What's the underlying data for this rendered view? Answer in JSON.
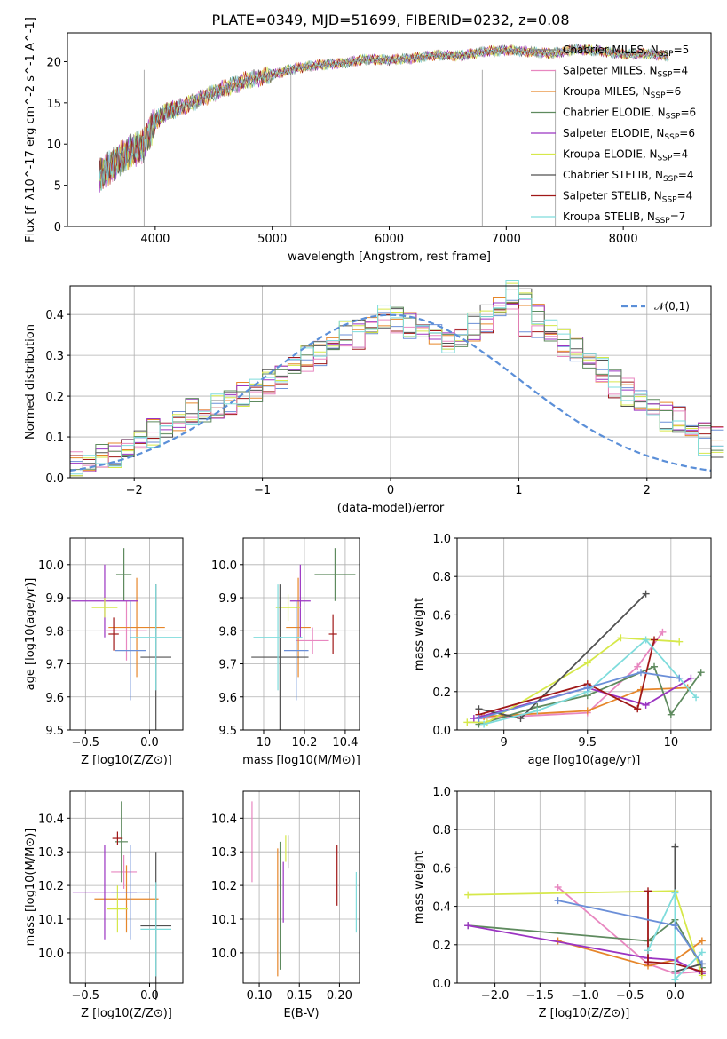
{
  "figure_title": "PLATE=0349, MJD=51699, FIBERID=0232, z=0.08",
  "colors": [
    "#808080",
    "#e887c0",
    "#e6862a",
    "#5e8a5e",
    "#9b34c2",
    "#d6e84a",
    "#505050",
    "#a01818",
    "#7fdcdc"
  ],
  "cmp_colors": [
    "#e887c0",
    "#e6862a",
    "#5e8a5e",
    "#9b34c2",
    "#d6e84a",
    "#505050",
    "#a01818",
    "#7fdcdc",
    "#6b8fd8"
  ],
  "legend": [
    {
      "name": "Chabrier MILES, N",
      "sub": "SSP",
      "rest": "=5"
    },
    {
      "name": "Salpeter MILES, N",
      "sub": "SSP",
      "rest": "=4"
    },
    {
      "name": "Kroupa MILES, N",
      "sub": "SSP",
      "rest": "=6"
    },
    {
      "name": "Chabrier ELODIE, N",
      "sub": "SSP",
      "rest": "=6"
    },
    {
      "name": "Salpeter ELODIE, N",
      "sub": "SSP",
      "rest": "=6"
    },
    {
      "name": "Kroupa ELODIE, N",
      "sub": "SSP",
      "rest": "=4"
    },
    {
      "name": "Chabrier STELIB, N",
      "sub": "SSP",
      "rest": "=4"
    },
    {
      "name": "Salpeter STELIB, N",
      "sub": "SSP",
      "rest": "=4"
    },
    {
      "name": "Kroupa STELIB, N",
      "sub": "SSP",
      "rest": "=7"
    }
  ],
  "chart_data": [
    {
      "id": "spectrum",
      "type": "line",
      "xlabel": "wavelength [Angstrom, rest frame]",
      "ylabel": "Flux [f_λ10^-17 erg cm^-2 s^-1 A^-1]",
      "xlim": [
        3250,
        8750
      ],
      "ylim": [
        0,
        23.5
      ],
      "xticks": [
        4000,
        5000,
        6000,
        7000,
        8000
      ],
      "yticks": [
        0,
        5,
        10,
        15,
        20
      ],
      "x": [
        3520,
        3600,
        3700,
        3800,
        3900,
        4000,
        4100,
        4200,
        4400,
        4600,
        4800,
        5000,
        5200,
        5400,
        5600,
        5800,
        6000,
        6200,
        6400,
        6600,
        6800,
        7000,
        7200,
        7400,
        7600,
        7800,
        8000,
        8200,
        8400
      ],
      "y": [
        6.2,
        7.0,
        8.2,
        9.2,
        9.8,
        12.8,
        14.0,
        14.3,
        15.6,
        16.8,
        17.8,
        18.4,
        19.2,
        19.6,
        19.8,
        20.3,
        20.2,
        20.4,
        20.8,
        20.7,
        21.2,
        21.4,
        21.2,
        21.0,
        21.5,
        21.3,
        20.9,
        21.0,
        20.6
      ]
    },
    {
      "id": "residuals",
      "type": "histogram",
      "xlabel": "(data-model)/error",
      "ylabel": "Normed distribution",
      "xlim": [
        -2.5,
        2.5
      ],
      "ylim": [
        0,
        0.47
      ],
      "xticks": [
        -2,
        -1,
        0,
        1,
        2
      ],
      "yticks": [
        0.0,
        0.1,
        0.2,
        0.3,
        0.4
      ],
      "legend": "𝒩(0,1)",
      "bin_edges_start": -2.5,
      "bin_width": 0.1,
      "series": [
        {
          "values": [
            0.04,
            0.03,
            0.05,
            0.05,
            0.07,
            0.1,
            0.11,
            0.11,
            0.15,
            0.16,
            0.14,
            0.16,
            0.18,
            0.19,
            0.2,
            0.23,
            0.24,
            0.27,
            0.28,
            0.3,
            0.31,
            0.33,
            0.34,
            0.36,
            0.38,
            0.38,
            0.36,
            0.35,
            0.37,
            0.34,
            0.34,
            0.36,
            0.38,
            0.4,
            0.41,
            0.37,
            0.36,
            0.33,
            0.32,
            0.31,
            0.28,
            0.25,
            0.22,
            0.22,
            0.19,
            0.18,
            0.15,
            0.15,
            0.13,
            0.12,
            0.1
          ]
        },
        {
          "values": [
            0.03,
            0.04,
            0.06,
            0.06,
            0.08,
            0.09,
            0.12,
            0.13,
            0.14,
            0.17,
            0.15,
            0.17,
            0.19,
            0.21,
            0.21,
            0.24,
            0.25,
            0.28,
            0.3,
            0.31,
            0.33,
            0.35,
            0.36,
            0.37,
            0.39,
            0.4,
            0.38,
            0.37,
            0.35,
            0.33,
            0.34,
            0.36,
            0.37,
            0.42,
            0.45,
            0.43,
            0.4,
            0.36,
            0.33,
            0.32,
            0.29,
            0.26,
            0.24,
            0.21,
            0.19,
            0.17,
            0.16,
            0.14,
            0.12,
            0.11,
            0.09
          ]
        },
        {
          "values": [
            0.02,
            0.03,
            0.04,
            0.05,
            0.06,
            0.09,
            0.1,
            0.12,
            0.13,
            0.15,
            0.17,
            0.18,
            0.19,
            0.2,
            0.22,
            0.24,
            0.26,
            0.28,
            0.3,
            0.32,
            0.34,
            0.36,
            0.37,
            0.38,
            0.4,
            0.39,
            0.37,
            0.36,
            0.34,
            0.33,
            0.35,
            0.38,
            0.41,
            0.43,
            0.46,
            0.44,
            0.4,
            0.37,
            0.34,
            0.32,
            0.3,
            0.27,
            0.24,
            0.2,
            0.18,
            0.16,
            0.14,
            0.12,
            0.1,
            0.08,
            0.07
          ]
        }
      ]
    },
    {
      "id": "age_vs_Z",
      "type": "scatter",
      "xlabel": "Z [log10(Z/Z⊙)]",
      "ylabel": "age [log10(age/yr)]",
      "xlim": [
        -0.62,
        0.26
      ],
      "ylim": [
        9.5,
        10.08
      ],
      "xticks": [
        -0.5,
        0.0
      ],
      "xtick_labels": [
        "-0.5",
        "0.0"
      ],
      "yticks": [
        9.5,
        9.6,
        9.7,
        9.8,
        9.9,
        10.0
      ],
      "points": [
        {
          "x": -0.18,
          "y": 9.8,
          "xerr": 0.16,
          "yerr": 0.09
        },
        {
          "x": -0.1,
          "y": 9.81,
          "xerr": 0.22,
          "yerr": 0.15
        },
        {
          "x": -0.2,
          "y": 9.97,
          "xerr": 0.06,
          "yerr": 0.08
        },
        {
          "x": -0.35,
          "y": 9.89,
          "xerr": 0.26,
          "yerr": 0.11
        },
        {
          "x": -0.35,
          "y": 9.87,
          "xerr": 0.1,
          "yerr": 0.03
        },
        {
          "x": 0.05,
          "y": 9.72,
          "xerr": 0.12,
          "yerr": 0.22
        },
        {
          "x": -0.28,
          "y": 9.79,
          "xerr": 0.04,
          "yerr": 0.05
        },
        {
          "x": 0.05,
          "y": 9.78,
          "xerr": 0.2,
          "yerr": 0.16
        },
        {
          "x": -0.15,
          "y": 9.74,
          "xerr": 0.12,
          "yerr": 0.15
        }
      ]
    },
    {
      "id": "age_vs_mass",
      "type": "scatter",
      "xlabel": "mass [log10(M/M⊙)]",
      "ylabel": "",
      "xlim": [
        9.9,
        10.47
      ],
      "ylim": [
        9.5,
        10.08
      ],
      "xticks": [
        10.0,
        10.2,
        10.4
      ],
      "yticks": [
        9.5,
        9.6,
        9.7,
        9.8,
        9.9,
        10.0
      ],
      "points": [
        {
          "x": 10.24,
          "y": 9.77,
          "xerr": 0.08,
          "yerr": 0.04
        },
        {
          "x": 10.17,
          "y": 9.81,
          "xerr": 0.06,
          "yerr": 0.15
        },
        {
          "x": 10.35,
          "y": 9.97,
          "xerr": 0.1,
          "yerr": 0.08
        },
        {
          "x": 10.18,
          "y": 9.89,
          "xerr": 0.05,
          "yerr": 0.11
        },
        {
          "x": 10.12,
          "y": 9.87,
          "xerr": 0.06,
          "yerr": 0.04
        },
        {
          "x": 10.08,
          "y": 9.72,
          "xerr": 0.14,
          "yerr": 0.22
        },
        {
          "x": 10.34,
          "y": 9.79,
          "xerr": 0.02,
          "yerr": 0.06
        },
        {
          "x": 10.07,
          "y": 9.78,
          "xerr": 0.12,
          "yerr": 0.16
        },
        {
          "x": 10.16,
          "y": 9.74,
          "xerr": 0.06,
          "yerr": 0.15
        }
      ]
    },
    {
      "id": "weight_vs_age",
      "type": "line",
      "xlabel": "age [log10(age/yr)]",
      "ylabel": "mass weight",
      "xlim": [
        8.72,
        10.24
      ],
      "ylim": [
        0,
        1.0
      ],
      "xticks": [
        9.0,
        9.5,
        10.0
      ],
      "yticks": [
        0.0,
        0.2,
        0.4,
        0.6,
        0.8,
        1.0
      ],
      "series": [
        {
          "x": [
            8.85,
            9.5,
            9.8,
            9.95
          ],
          "y": [
            0.06,
            0.09,
            0.33,
            0.51
          ]
        },
        {
          "x": [
            8.88,
            9.5,
            9.82,
            10.1
          ],
          "y": [
            0.07,
            0.1,
            0.21,
            0.22
          ]
        },
        {
          "x": [
            8.85,
            9.2,
            9.5,
            9.9,
            10.0,
            10.18
          ],
          "y": [
            0.03,
            0.12,
            0.18,
            0.33,
            0.08,
            0.3
          ]
        },
        {
          "x": [
            8.82,
            9.5,
            9.85,
            10.12
          ],
          "y": [
            0.06,
            0.22,
            0.13,
            0.27
          ]
        },
        {
          "x": [
            8.78,
            8.9,
            9.5,
            9.7,
            10.05
          ],
          "y": [
            0.04,
            0.04,
            0.35,
            0.48,
            0.46
          ]
        },
        {
          "x": [
            8.85,
            9.1,
            9.85
          ],
          "y": [
            0.11,
            0.06,
            0.71
          ]
        },
        {
          "x": [
            8.85,
            9.5,
            9.8,
            9.9
          ],
          "y": [
            0.08,
            0.24,
            0.11,
            0.47
          ]
        },
        {
          "x": [
            8.88,
            9.2,
            9.5,
            9.85,
            10.15
          ],
          "y": [
            0.03,
            0.1,
            0.2,
            0.47,
            0.17
          ]
        },
        {
          "x": [
            8.85,
            9.5,
            9.82,
            10.05
          ],
          "y": [
            0.06,
            0.22,
            0.3,
            0.27
          ]
        }
      ]
    },
    {
      "id": "mass_vs_Z",
      "type": "scatter",
      "xlabel": "Z [log10(Z/Z⊙)]",
      "ylabel": "mass [log10(M/M⊙)]",
      "xlim": [
        -0.62,
        0.26
      ],
      "ylim": [
        9.91,
        10.48
      ],
      "xticks": [
        -0.5,
        0.0
      ],
      "xtick_labels": [
        "-0.5",
        "0.0"
      ],
      "yticks": [
        10.0,
        10.1,
        10.2,
        10.3,
        10.4
      ],
      "points": [
        {
          "x": -0.2,
          "y": 10.24,
          "xerr": 0.1,
          "yerr": 0.05
        },
        {
          "x": -0.18,
          "y": 10.16,
          "xerr": 0.25,
          "yerr": 0.1
        },
        {
          "x": -0.22,
          "y": 10.33,
          "xerr": 0.05,
          "yerr": 0.12
        },
        {
          "x": -0.35,
          "y": 10.18,
          "xerr": 0.25,
          "yerr": 0.14
        },
        {
          "x": -0.25,
          "y": 10.13,
          "xerr": 0.08,
          "yerr": 0.07
        },
        {
          "x": 0.05,
          "y": 10.08,
          "xerr": 0.12,
          "yerr": 0.22
        },
        {
          "x": -0.25,
          "y": 10.34,
          "xerr": 0.04,
          "yerr": 0.02
        },
        {
          "x": 0.05,
          "y": 10.07,
          "xerr": 0.12,
          "yerr": 0.14
        },
        {
          "x": -0.15,
          "y": 10.18,
          "xerr": 0.15,
          "yerr": 0.14
        }
      ]
    },
    {
      "id": "mass_vs_ebv",
      "type": "scatter",
      "xlabel": "E(B-V)",
      "ylabel": "",
      "xlim": [
        0.08,
        0.225
      ],
      "ylim": [
        9.91,
        10.48
      ],
      "xticks": [
        0.1,
        0.15,
        0.2
      ],
      "xtick_labels": [
        "0.10",
        "0.15",
        "0.20"
      ],
      "yticks": [
        10.0,
        10.1,
        10.2,
        10.3,
        10.4
      ],
      "points": [
        {
          "x": 0.091,
          "y": 10.33,
          "yerr": 0.12
        },
        {
          "x": 0.123,
          "y": 10.12,
          "yerr": 0.19
        },
        {
          "x": 0.126,
          "y": 10.14,
          "yerr": 0.19
        },
        {
          "x": 0.13,
          "y": 10.18,
          "yerr": 0.09
        },
        {
          "x": 0.133,
          "y": 10.31,
          "yerr": 0.04
        },
        {
          "x": 0.136,
          "y": 10.3,
          "yerr": 0.05
        },
        {
          "x": 0.197,
          "y": 10.23,
          "yerr": 0.09
        },
        {
          "x": 0.221,
          "y": 10.15,
          "yerr": 0.09
        }
      ]
    },
    {
      "id": "weight_vs_Z",
      "type": "line",
      "xlabel": "Z [log10(Z/Z⊙)]",
      "ylabel": "mass weight",
      "xlim": [
        -2.42,
        0.4
      ],
      "ylim": [
        0,
        1.0
      ],
      "xticks": [
        -2.0,
        -1.5,
        -1.0,
        -0.5,
        0.0
      ],
      "xtick_labels": [
        "-2.0",
        "-1.5",
        "-1.0",
        "-0.5",
        "0.0"
      ],
      "yticks": [
        0.0,
        0.2,
        0.4,
        0.6,
        0.8,
        1.0
      ],
      "series": [
        {
          "x": [
            -1.3,
            -0.3,
            0.0,
            0.3
          ],
          "y": [
            0.5,
            0.1,
            0.05,
            0.06
          ]
        },
        {
          "x": [
            -1.3,
            -0.3,
            0.0,
            0.3
          ],
          "y": [
            0.22,
            0.09,
            0.12,
            0.22
          ]
        },
        {
          "x": [
            -2.3,
            -0.3,
            0.0,
            0.3
          ],
          "y": [
            0.3,
            0.22,
            0.33,
            0.08
          ]
        },
        {
          "x": [
            -2.3,
            -0.3,
            0.0,
            0.3
          ],
          "y": [
            0.3,
            0.13,
            0.12,
            0.05
          ]
        },
        {
          "x": [
            -2.3,
            0.0,
            0.3
          ],
          "y": [
            0.46,
            0.48,
            0.04
          ]
        },
        {
          "x": [
            0.0,
            0.0,
            0.3
          ],
          "y": [
            0.71,
            0.06,
            0.1
          ]
        },
        {
          "x": [
            -0.3,
            -0.3,
            0.0,
            0.3
          ],
          "y": [
            0.48,
            0.11,
            0.1,
            0.06
          ]
        },
        {
          "x": [
            -0.3,
            0.0,
            0.0,
            0.3
          ],
          "y": [
            0.17,
            0.47,
            0.02,
            0.16
          ]
        },
        {
          "x": [
            -1.3,
            0.0,
            0.3
          ],
          "y": [
            0.43,
            0.3,
            0.1
          ]
        }
      ]
    }
  ]
}
